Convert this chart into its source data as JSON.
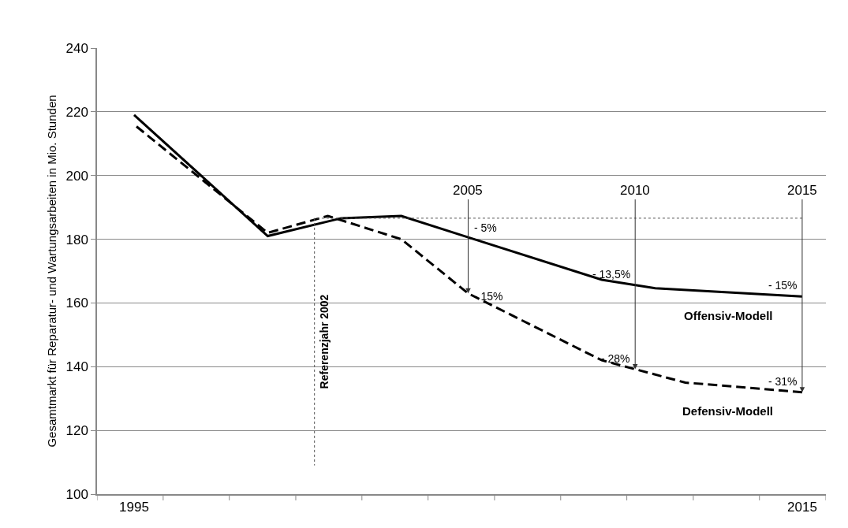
{
  "chart_data": {
    "type": "line",
    "ylabel": "Gesamtmarkt für Reparatur- und Wartungsarbeiten in Mio. Stunden",
    "xlim": [
      1993.89,
      2015.71
    ],
    "xticks": [
      {
        "value": 1993.89,
        "label": null
      },
      {
        "value": 1995,
        "label": "1995"
      },
      {
        "value": 1995.87,
        "label": null
      },
      {
        "value": 1997.85,
        "label": null
      },
      {
        "value": 1999.84,
        "label": null
      },
      {
        "value": 2001.82,
        "label": null
      },
      {
        "value": 2003.8,
        "label": null
      },
      {
        "value": 2005.79,
        "label": null
      },
      {
        "value": 2007.77,
        "label": null
      },
      {
        "value": 2009.75,
        "label": null
      },
      {
        "value": 2011.74,
        "label": null
      },
      {
        "value": 2013.72,
        "label": null
      },
      {
        "value": 2015,
        "label": "2015"
      },
      {
        "value": 2015.71,
        "label": null
      }
    ],
    "ylim": [
      100,
      240
    ],
    "yticks": [
      100,
      120,
      140,
      160,
      180,
      200,
      220,
      240
    ],
    "grid": "y",
    "legend": false,
    "marker": "none",
    "series": [
      {
        "name": "Offensiv-Modell",
        "color": "#000000",
        "line_style": "solid",
        "x": [
          1995,
          1999,
          2001.2,
          2003,
          2005,
          2009,
          2010.6,
          2015
        ],
        "values": [
          219,
          181,
          186.6,
          187.3,
          180.6,
          167.3,
          164.6,
          162
        ]
      },
      {
        "name": "Defensiv-Modell",
        "color": "#000000",
        "line_style": "dashed",
        "x": [
          1995,
          1999,
          2000.8,
          2003,
          2005,
          2009,
          2011.5,
          2015
        ],
        "values": [
          216,
          182,
          187.3,
          180,
          163,
          142,
          135,
          132
        ]
      },
      {
        "color": "#555555",
        "line_style": "dotted",
        "x": [
          2000.4,
          2015
        ],
        "values": [
          186.6,
          186.6
        ]
      },
      {
        "name": "Referenzjahr 2002",
        "color": "#555555",
        "line_style": "dotted",
        "x": [
          2000.4,
          2000.4
        ],
        "values": [
          109,
          186.6
        ]
      }
    ],
    "annotations": [
      {
        "text": "2005",
        "x": 2005,
        "y": 163
      },
      {
        "text": "2010",
        "x": 2010,
        "y": 139.2
      },
      {
        "text": "2015",
        "x": 2015,
        "y": 132
      },
      {
        "text": "- 5%",
        "x": 2005,
        "y": 180.6
      },
      {
        "text": "- 13,5%",
        "x": 2010,
        "y": 165.6
      },
      {
        "text": "- 15%",
        "x": 2015,
        "y": 162
      },
      {
        "text": "- 15%",
        "x": 2005,
        "y": 163
      },
      {
        "text": "- 28%",
        "x": 2010,
        "y": 139.2
      },
      {
        "text": "- 31%",
        "x": 2015,
        "y": 132
      }
    ]
  }
}
